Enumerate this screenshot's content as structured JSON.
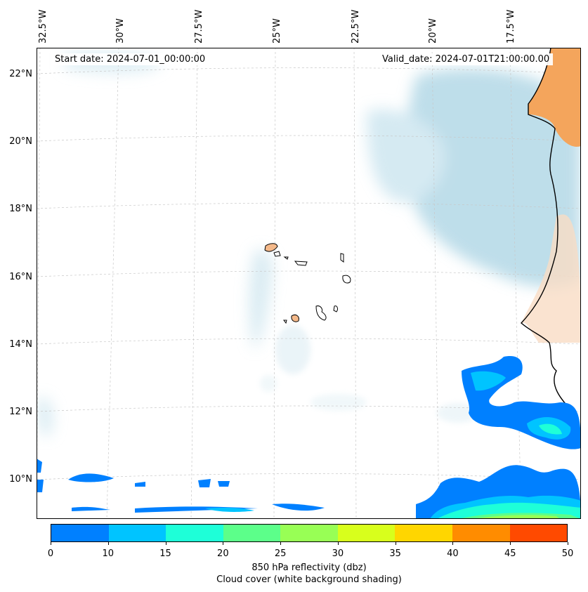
{
  "map": {
    "start_date": "Start date: 2024-07-01_00:00:00",
    "valid_date": "Valid_date: 2024-07-01T21:00:00.00",
    "longitude_labels": [
      "32.5°W",
      "30°W",
      "27.5°W",
      "25°W",
      "22.5°W",
      "20°W",
      "17.5°W"
    ],
    "latitude_labels": [
      "22°N",
      "20°N",
      "18°N",
      "16°N",
      "14°N",
      "12°N",
      "10°N"
    ],
    "land_color": "#f4a55c",
    "cloud_color": "#a9d3e3"
  },
  "colorbar": {
    "colors": [
      "#0080ff",
      "#00c4ff",
      "#1effd8",
      "#5cff8a",
      "#98ff55",
      "#d8ff1c",
      "#ffd600",
      "#ff8c00",
      "#ff4a00",
      "#ff4a00"
    ],
    "tick_labels": [
      "0",
      "10",
      "15",
      "20",
      "25",
      "30",
      "35",
      "40",
      "45",
      "50"
    ],
    "label": "850 hPa reflectivity (dbz)",
    "sublabel": "Cloud cover (white background shading)"
  }
}
